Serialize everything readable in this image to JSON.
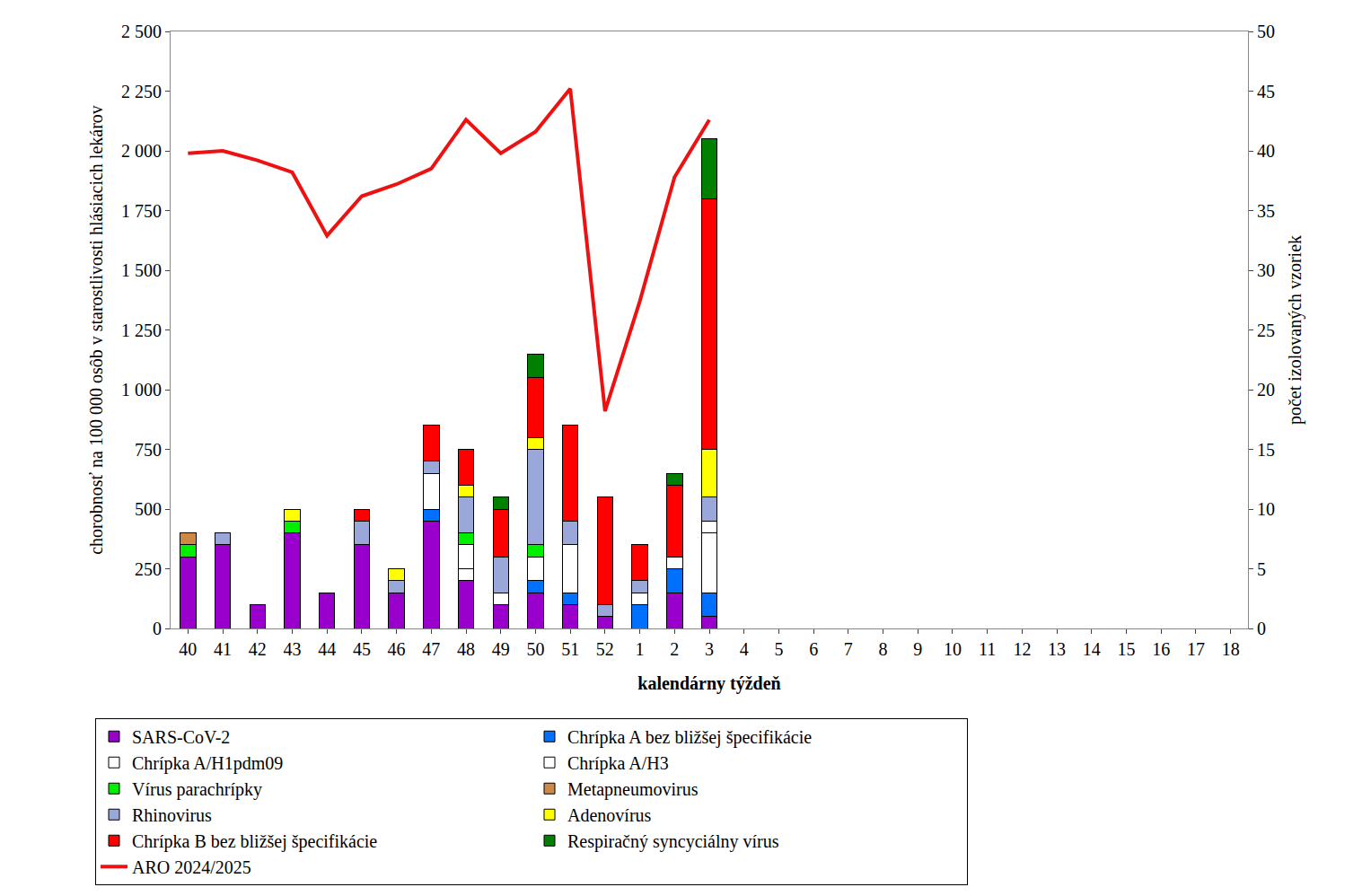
{
  "chart_data": {
    "type": "bar",
    "stacked": true,
    "grid": false,
    "legend": "bottom",
    "x_label": "kalendárny týždeň",
    "y_label": "chorobnosť na 100 000 osôb v starostlivosti hlásiacich lekárov",
    "y2_label": "počet izolovaných vzoriek",
    "categories": [
      "40",
      "41",
      "42",
      "43",
      "44",
      "45",
      "46",
      "47",
      "48",
      "49",
      "50",
      "51",
      "52",
      "1",
      "2",
      "3",
      "4",
      "5",
      "6",
      "7",
      "8",
      "9",
      "10",
      "11",
      "12",
      "13",
      "14",
      "15",
      "16",
      "17",
      "18"
    ],
    "ylim": [
      0,
      2500
    ],
    "yticks": [
      0,
      250,
      500,
      750,
      {
        "value": 1000,
        "label": "1 000"
      },
      {
        "value": 1250,
        "label": "1 250"
      },
      {
        "value": 1500,
        "label": "1 500"
      },
      {
        "value": 1750,
        "label": "1 750"
      },
      {
        "value": 2000,
        "label": "2 000"
      },
      {
        "value": 2250,
        "label": "2 250"
      },
      {
        "value": 2500,
        "label": "2 500"
      }
    ],
    "y2lim": [
      0,
      50
    ],
    "y2ticks": [
      0,
      5,
      10,
      15,
      20,
      25,
      30,
      35,
      40,
      45,
      50
    ],
    "series": [
      {
        "name": "SARS-CoV-2",
        "color": "#9900cc",
        "axis": "y2",
        "type": "bar",
        "values": [
          6,
          7,
          2,
          8,
          3,
          7,
          3,
          9,
          4,
          2,
          3,
          2,
          1,
          0,
          3,
          1,
          null,
          null,
          null,
          null,
          null,
          null,
          null,
          null,
          null,
          null,
          null,
          null,
          null,
          null,
          null
        ]
      },
      {
        "name": "Chrípka A bez bližšej špecifikácie",
        "color": "#0070ff",
        "axis": "y2",
        "type": "bar",
        "values": [
          0,
          0,
          0,
          0,
          0,
          0,
          0,
          1,
          0,
          0,
          1,
          1,
          0,
          2,
          2,
          2,
          null,
          null,
          null,
          null,
          null,
          null,
          null,
          null,
          null,
          null,
          null,
          null,
          null,
          null,
          null
        ]
      },
      {
        "name": "Chrípka A/H1pdm09",
        "color": "#2e8bd0",
        "axis": "y2",
        "type": "bar",
        "marker": "dots",
        "values": [
          0,
          0,
          0,
          0,
          0,
          0,
          0,
          0,
          1,
          1,
          2,
          4,
          0,
          1,
          0,
          5,
          null,
          null,
          null,
          null,
          null,
          null,
          null,
          null,
          null,
          null,
          null,
          null,
          null,
          null,
          null
        ]
      },
      {
        "name": "Chrípka A/H3",
        "color": "#1c1cff",
        "axis": "y2",
        "type": "bar",
        "marker": "stripes",
        "values": [
          0,
          0,
          0,
          0,
          0,
          0,
          0,
          3,
          2,
          0,
          0,
          0,
          0,
          0,
          1,
          1,
          null,
          null,
          null,
          null,
          null,
          null,
          null,
          null,
          null,
          null,
          null,
          null,
          null,
          null,
          null
        ]
      },
      {
        "name": "Vírus parachrípky",
        "color": "#00ee00",
        "axis": "y2",
        "type": "bar",
        "values": [
          1,
          0,
          0,
          1,
          0,
          0,
          0,
          0,
          1,
          0,
          1,
          0,
          0,
          0,
          0,
          0,
          null,
          null,
          null,
          null,
          null,
          null,
          null,
          null,
          null,
          null,
          null,
          null,
          null,
          null,
          null
        ]
      },
      {
        "name": "Metapneumovirus",
        "color": "#cc8844",
        "axis": "y2",
        "type": "bar",
        "values": [
          1,
          0,
          0,
          0,
          0,
          0,
          0,
          0,
          0,
          0,
          0,
          0,
          0,
          0,
          0,
          0,
          null,
          null,
          null,
          null,
          null,
          null,
          null,
          null,
          null,
          null,
          null,
          null,
          null,
          null,
          null
        ]
      },
      {
        "name": "Rhinovirus",
        "color": "#99a8d8",
        "axis": "y2",
        "type": "bar",
        "values": [
          0,
          1,
          0,
          0,
          0,
          2,
          1,
          1,
          3,
          3,
          8,
          2,
          1,
          1,
          0,
          2,
          null,
          null,
          null,
          null,
          null,
          null,
          null,
          null,
          null,
          null,
          null,
          null,
          null,
          null,
          null
        ]
      },
      {
        "name": "Adenovírus",
        "color": "#ffff00",
        "axis": "y2",
        "type": "bar",
        "values": [
          0,
          0,
          0,
          1,
          0,
          0,
          1,
          0,
          1,
          0,
          1,
          0,
          0,
          0,
          0,
          4,
          null,
          null,
          null,
          null,
          null,
          null,
          null,
          null,
          null,
          null,
          null,
          null,
          null,
          null,
          null
        ]
      },
      {
        "name": "Chrípka B bez bližšej špecifikácie",
        "color": "#ff0000",
        "axis": "y2",
        "type": "bar",
        "values": [
          0,
          0,
          0,
          0,
          0,
          1,
          0,
          3,
          3,
          4,
          5,
          8,
          9,
          3,
          6,
          21,
          null,
          null,
          null,
          null,
          null,
          null,
          null,
          null,
          null,
          null,
          null,
          null,
          null,
          null,
          null
        ]
      },
      {
        "name": "Respiračný syncyciálny vírus",
        "color": "#008000",
        "axis": "y2",
        "type": "bar",
        "values": [
          0,
          0,
          0,
          0,
          0,
          0,
          0,
          0,
          0,
          1,
          2,
          0,
          0,
          0,
          1,
          5,
          null,
          null,
          null,
          null,
          null,
          null,
          null,
          null,
          null,
          null,
          null,
          null,
          null,
          null,
          null
        ]
      },
      {
        "name": "ARO 2024/2025",
        "color": "#ee1111",
        "axis": "y",
        "type": "line",
        "values": [
          1990,
          2000,
          1960,
          1910,
          1645,
          1810,
          1860,
          1925,
          2130,
          1990,
          2080,
          2260,
          910,
          1370,
          1890,
          2130,
          null,
          null,
          null,
          null,
          null,
          null,
          null,
          null,
          null,
          null,
          null,
          null,
          null,
          null,
          null
        ]
      }
    ]
  }
}
